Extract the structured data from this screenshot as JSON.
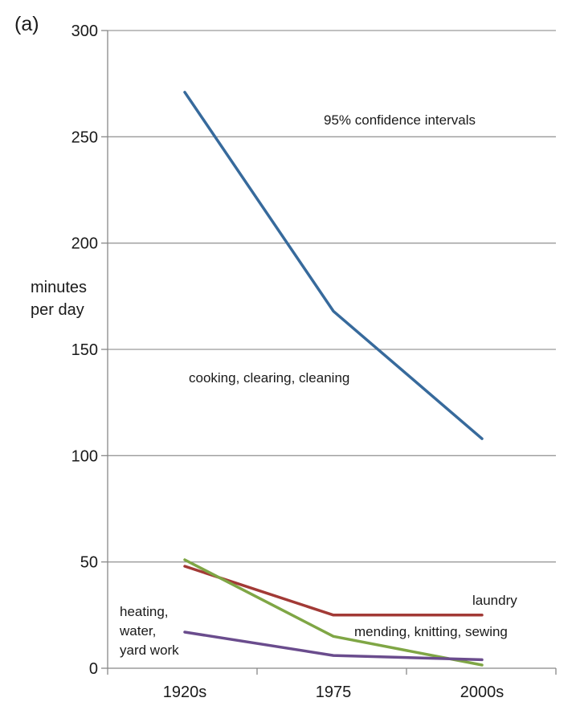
{
  "panel_label": "(a)",
  "chart_data": {
    "type": "line",
    "ylabel_lines": [
      "minutes",
      "per day"
    ],
    "categories": [
      "1920s",
      "1975",
      "2000s"
    ],
    "ylim": [
      0,
      300
    ],
    "yticks": [
      0,
      50,
      100,
      150,
      200,
      250,
      300
    ],
    "grid": true,
    "series": [
      {
        "name": "cooking, clearing, cleaning",
        "color": "#376a9c",
        "values": [
          271,
          168,
          108
        ]
      },
      {
        "name": "laundry",
        "color": "#a23a36",
        "values": [
          48,
          25,
          25
        ]
      },
      {
        "name": "mending, knitting, sewing",
        "color": "#7fa645",
        "values": [
          51,
          15,
          1.5
        ]
      },
      {
        "name": "heating, water, yard work",
        "color": "#6a4c8d",
        "values": [
          17,
          6,
          4
        ]
      }
    ],
    "annotations": {
      "confidence": "95% confidence intervals",
      "cooking": "cooking, clearing, cleaning",
      "laundry": "laundry",
      "mending": "mending, knitting, sewing",
      "heating_lines": [
        "heating,",
        "water,",
        "yard work"
      ]
    }
  }
}
